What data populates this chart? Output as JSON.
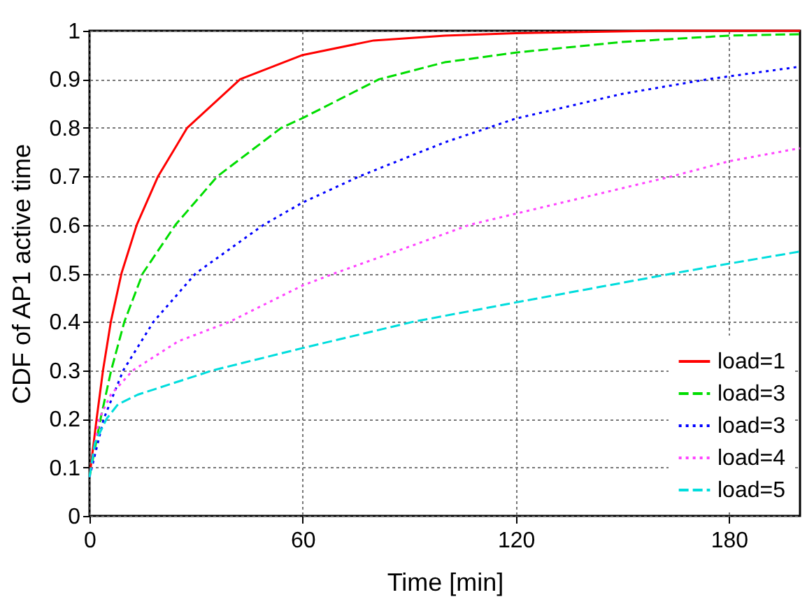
{
  "chart_data": {
    "type": "line",
    "xlabel": "Time [min]",
    "ylabel": "CDF of AP1 active time",
    "xlim": [
      0,
      200
    ],
    "xticks": [
      0,
      60,
      120,
      180
    ],
    "ylim": [
      0,
      1
    ],
    "yticks": [
      0,
      0.1,
      0.2,
      0.3,
      0.4,
      0.5,
      0.6,
      0.7,
      0.8,
      0.9,
      1
    ],
    "grid": true,
    "legend": "bottom right",
    "series": [
      {
        "name": "load=1",
        "color": "#ff0000",
        "line_style": "solid",
        "x": [
          0,
          2,
          3.8,
          6,
          9,
          13.3,
          19.3,
          27.5,
          42.4,
          60,
          80,
          100,
          120,
          160,
          200
        ],
        "values": [
          0.08,
          0.2,
          0.3,
          0.4,
          0.5,
          0.6,
          0.7,
          0.8,
          0.9,
          0.95,
          0.98,
          0.99,
          0.995,
          1,
          1
        ]
      },
      {
        "name": "load=3",
        "color": "#00dd00",
        "line_style": "dashed",
        "x": [
          0,
          3.1,
          6.1,
          9.8,
          15,
          24.2,
          36,
          54,
          60,
          81.5,
          100,
          120,
          150,
          180,
          200
        ],
        "values": [
          0.08,
          0.2,
          0.3,
          0.4,
          0.5,
          0.6,
          0.7,
          0.8,
          0.82,
          0.9,
          0.935,
          0.955,
          0.977,
          0.99,
          0.993
        ]
      },
      {
        "name": "load=3",
        "color": "#0000ff",
        "line_style": "dotted",
        "x": [
          0,
          4,
          9.5,
          18,
          29.9,
          49,
          60,
          76,
          100,
          120,
          150,
          174,
          200
        ],
        "values": [
          0.08,
          0.2,
          0.3,
          0.4,
          0.5,
          0.6,
          0.646,
          0.7,
          0.77,
          0.819,
          0.87,
          0.9,
          0.926
        ]
      },
      {
        "name": "load=4",
        "color": "#ff44ff",
        "line_style": "dotted",
        "x": [
          0,
          2.7,
          6,
          12.2,
          25,
          39.4,
          60,
          69,
          90,
          107,
          120,
          164,
          180,
          200
        ],
        "values": [
          0.08,
          0.2,
          0.25,
          0.3,
          0.36,
          0.4,
          0.475,
          0.5,
          0.555,
          0.6,
          0.623,
          0.7,
          0.731,
          0.758
        ]
      },
      {
        "name": "load=5",
        "color": "#00dddd",
        "line_style": "dashed",
        "x": [
          0,
          1.5,
          4.8,
          8,
          13.6,
          34.7,
          60,
          91,
          120,
          164.4,
          180,
          200
        ],
        "values": [
          0.08,
          0.15,
          0.2,
          0.23,
          0.25,
          0.3,
          0.346,
          0.4,
          0.44,
          0.5,
          0.52,
          0.545
        ]
      }
    ]
  }
}
